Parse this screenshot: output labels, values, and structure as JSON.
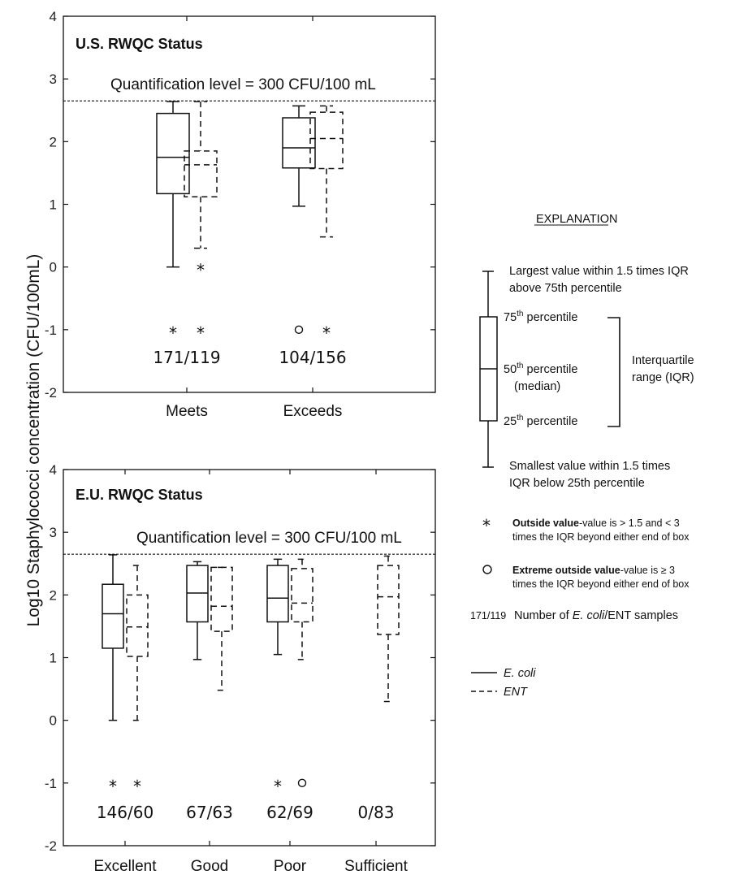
{
  "y_axis_label": "Log10 Staphylococci concentration (CFU/100mL)",
  "chart_data": [
    {
      "type": "box",
      "title": "U.S. RWQC Status",
      "ylim": [
        -2,
        4
      ],
      "yticks": [
        -2,
        -1,
        0,
        1,
        2,
        3,
        4
      ],
      "reference_line": {
        "value": 2.65,
        "label": "Quantification level = 300 CFU/100 mL"
      },
      "categories": [
        "Meets",
        "Exceeds"
      ],
      "counts": [
        "171/119",
        "104/156"
      ],
      "series": [
        {
          "name": "E. coli",
          "style": "solid",
          "boxes": [
            {
              "whisker_low": 0.0,
              "q1": 1.17,
              "median": 1.75,
              "q3": 2.45,
              "whisker_high": 2.64,
              "outliers": [
                {
                  "value": -1,
                  "marker": "*"
                }
              ]
            },
            {
              "whisker_low": 0.97,
              "q1": 1.58,
              "median": 1.9,
              "q3": 2.38,
              "whisker_high": 2.57,
              "outliers": [
                {
                  "value": -1,
                  "marker": "o"
                }
              ]
            }
          ]
        },
        {
          "name": "ENT",
          "style": "dashed",
          "boxes": [
            {
              "whisker_low": 0.3,
              "q1": 1.12,
              "median": 1.63,
              "q3": 1.85,
              "whisker_high": 2.64,
              "outliers": [
                {
                  "value": 0,
                  "marker": "*"
                },
                {
                  "value": -1,
                  "marker": "*"
                }
              ]
            },
            {
              "whisker_low": 0.48,
              "q1": 1.57,
              "median": 2.05,
              "q3": 2.47,
              "whisker_high": 2.57,
              "outliers": [
                {
                  "value": -1,
                  "marker": "*"
                }
              ]
            }
          ]
        }
      ]
    },
    {
      "type": "box",
      "title": "E.U. RWQC Status",
      "ylim": [
        -2,
        4
      ],
      "yticks": [
        -2,
        -1,
        0,
        1,
        2,
        3,
        4
      ],
      "reference_line": {
        "value": 2.65,
        "label": "Quantification level = 300 CFU/100 mL"
      },
      "categories": [
        "Excellent",
        "Good",
        "Poor",
        "Sufficient"
      ],
      "counts": [
        "146/60",
        "67/63",
        "62/69",
        "0/83"
      ],
      "series": [
        {
          "name": "E. coli",
          "style": "solid",
          "boxes": [
            {
              "whisker_low": 0.0,
              "q1": 1.15,
              "median": 1.7,
              "q3": 2.17,
              "whisker_high": 2.64,
              "outliers": [
                {
                  "value": -1,
                  "marker": "*"
                }
              ]
            },
            {
              "whisker_low": 0.97,
              "q1": 1.57,
              "median": 2.03,
              "q3": 2.47,
              "whisker_high": 2.53,
              "outliers": []
            },
            {
              "whisker_low": 1.05,
              "q1": 1.57,
              "median": 1.95,
              "q3": 2.47,
              "whisker_high": 2.57,
              "outliers": [
                {
                  "value": -1,
                  "marker": "*"
                }
              ]
            },
            null
          ]
        },
        {
          "name": "ENT",
          "style": "dashed",
          "boxes": [
            {
              "whisker_low": 0.0,
              "q1": 1.02,
              "median": 1.49,
              "q3": 2.0,
              "whisker_high": 2.47,
              "outliers": [
                {
                  "value": -1,
                  "marker": "*"
                }
              ]
            },
            {
              "whisker_low": 0.48,
              "q1": 1.42,
              "median": 1.82,
              "q3": 2.44,
              "whisker_high": 2.44,
              "outliers": []
            },
            {
              "whisker_low": 0.97,
              "q1": 1.57,
              "median": 1.87,
              "q3": 2.42,
              "whisker_high": 2.57,
              "outliers": [
                {
                  "value": -1,
                  "marker": "o"
                }
              ]
            },
            {
              "whisker_low": 0.3,
              "q1": 1.37,
              "median": 1.97,
              "q3": 2.47,
              "whisker_high": 2.62,
              "outliers": []
            }
          ]
        }
      ]
    }
  ],
  "legend": {
    "title": "EXPLANATION",
    "whisker_high": "Largest value within 1.5 times IQR",
    "whisker_high_2": "above 75th percentile",
    "q3_num": "75",
    "q3_sup": "th",
    "q3_rest": " percentile",
    "median_num": "50",
    "median_sup": "th",
    "median_rest": " percentile",
    "median_2": "(median)",
    "q1_num": "25",
    "q1_sup": "th",
    "q1_rest": " percentile",
    "iqr_1": "Interquartile",
    "iqr_2": "range (IQR)",
    "whisker_low": "Smallest value within 1.5 times",
    "whisker_low_2": "IQR below 25th percentile",
    "outside_symbol": "*",
    "outside_bold": "Outside value",
    "outside_rest": "-value  is > 1.5 and < 3",
    "outside_2": "times the IQR beyond either end of box",
    "extreme_symbol": "o",
    "extreme_bold": "Extreme outside value",
    "extreme_rest": "-value  is ≥ 3",
    "extreme_2": "times the IQR beyond either end of box",
    "count_example": "171/119",
    "count_text_1": "Number of ",
    "count_text_ital1": "E. coli",
    "count_text_2": "/ENT samples",
    "ecoli_label": "E. coli",
    "ent_label": "ENT"
  }
}
